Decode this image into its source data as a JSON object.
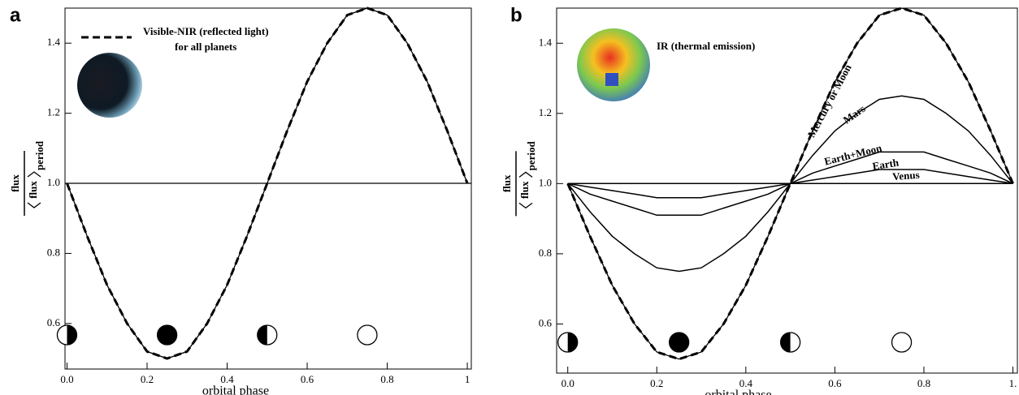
{
  "chart_data": [
    {
      "type": "line",
      "panel": "a",
      "x_label": "orbital phase",
      "y_label": {
        "numerator": "flux",
        "denominator": "flux",
        "subscript": "period"
      },
      "x": [
        0,
        0.05,
        0.1,
        0.15,
        0.2,
        0.25,
        0.3,
        0.35,
        0.4,
        0.45,
        0.5,
        0.55,
        0.6,
        0.65,
        0.7,
        0.75,
        0.8,
        0.85,
        0.9,
        0.95,
        1
      ],
      "series": [
        {
          "name": "Visible-NIR (reflected light)",
          "color": "#000000",
          "linestyle": "dashed",
          "values": [
            1,
            0.85,
            0.71,
            0.6,
            0.52,
            0.5,
            0.52,
            0.6,
            0.71,
            0.85,
            1,
            1.15,
            1.29,
            1.4,
            1.48,
            1.5,
            1.48,
            1.4,
            1.29,
            1.15,
            1
          ]
        }
      ],
      "legend_note": "for all planets",
      "reference_line": 1,
      "phase_markers": [
        0,
        0.25,
        0.5,
        0.75
      ],
      "xlim": [
        -0.005,
        1.01
      ],
      "ylim": [
        0.47,
        1.5
      ],
      "xticks": [
        {
          "value": 0,
          "label": "0.0"
        },
        0.2,
        0.4,
        0.6,
        0.8,
        1
      ],
      "yticks": [
        0.6,
        0.8,
        {
          "value": 1,
          "label": "1.0"
        },
        1.2,
        1.4
      ]
    },
    {
      "type": "line",
      "panel": "b",
      "x_label": "orbital phase",
      "y_label": {
        "numerator": "flux",
        "denominator": "flux",
        "subscript": "period"
      },
      "annotation": "IR (thermal emission)",
      "x": [
        0,
        0.05,
        0.1,
        0.15,
        0.2,
        0.25,
        0.3,
        0.35,
        0.4,
        0.45,
        0.5,
        0.55,
        0.6,
        0.65,
        0.7,
        0.75,
        0.8,
        0.85,
        0.9,
        0.95,
        1
      ],
      "series": [
        {
          "name": "Mercury or Moon",
          "color": "#000000",
          "linestyle": "dashed",
          "values": [
            1,
            0.85,
            0.71,
            0.6,
            0.52,
            0.5,
            0.52,
            0.6,
            0.71,
            0.85,
            1,
            1.15,
            1.29,
            1.4,
            1.48,
            1.5,
            1.48,
            1.4,
            1.29,
            1.15,
            1
          ]
        },
        {
          "name": "Mars",
          "color": "#000000",
          "linestyle": "solid",
          "values": [
            1,
            0.92,
            0.85,
            0.8,
            0.76,
            0.75,
            0.76,
            0.8,
            0.85,
            0.92,
            1,
            1.08,
            1.15,
            1.2,
            1.24,
            1.25,
            1.24,
            1.2,
            1.15,
            1.08,
            1
          ]
        },
        {
          "name": "Earth+Moon",
          "color": "#000000",
          "linestyle": "solid",
          "values": [
            1,
            0.97,
            0.95,
            0.93,
            0.91,
            0.91,
            0.91,
            0.93,
            0.95,
            0.97,
            1,
            1.03,
            1.05,
            1.07,
            1.09,
            1.09,
            1.09,
            1.07,
            1.05,
            1.03,
            1
          ]
        },
        {
          "name": "Earth",
          "color": "#000000",
          "linestyle": "solid",
          "values": [
            1,
            0.99,
            0.98,
            0.97,
            0.96,
            0.96,
            0.96,
            0.97,
            0.98,
            0.99,
            1,
            1.01,
            1.02,
            1.03,
            1.04,
            1.04,
            1.04,
            1.03,
            1.02,
            1.01,
            1
          ]
        },
        {
          "name": "Venus",
          "color": "#000000",
          "linestyle": "solid",
          "values": [
            1,
            1,
            1,
            1,
            1,
            1,
            1,
            1,
            1,
            1,
            1,
            1,
            1,
            1,
            1,
            1,
            1,
            1,
            1,
            1,
            1
          ]
        }
      ],
      "phase_markers": [
        0,
        0.25,
        0.5,
        0.75
      ],
      "xlim": [
        -0.025,
        1.01
      ],
      "ylim": [
        0.46,
        1.5
      ],
      "xticks": [
        {
          "value": 0,
          "label": "0.0"
        },
        0.2,
        0.4,
        0.6,
        0.8,
        {
          "value": 1,
          "label": "1."
        }
      ],
      "yticks": [
        0.6,
        0.8,
        {
          "value": 1,
          "label": "1.0"
        },
        1.2,
        1.4
      ]
    }
  ]
}
